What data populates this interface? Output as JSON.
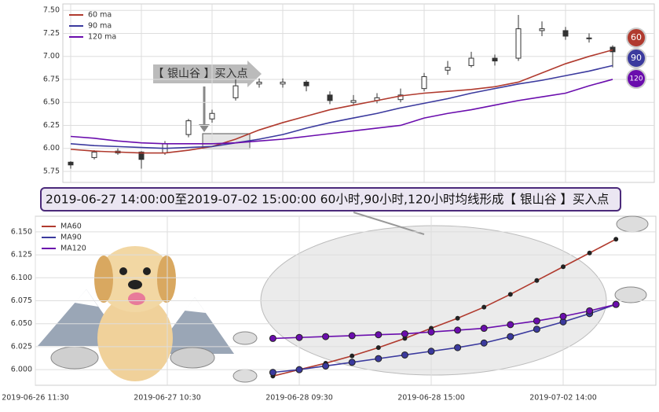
{
  "chart_data": [
    {
      "type": "candlestick",
      "categories": [
        null,
        null,
        null,
        null,
        null,
        null,
        null,
        null,
        null,
        null,
        null,
        null,
        null,
        null,
        null,
        null,
        null,
        null,
        null,
        null,
        null,
        null,
        null,
        null
      ],
      "open": [
        5.85,
        5.9,
        5.95,
        5.96,
        5.95,
        6.15,
        6.32,
        6.55,
        6.7,
        6.7,
        6.72,
        6.58,
        6.5,
        6.52,
        6.53,
        6.65,
        6.85,
        6.9,
        6.98,
        6.98,
        7.28,
        7.28,
        7.2,
        7.1
      ],
      "high": [
        5.86,
        5.98,
        6.0,
        5.97,
        6.08,
        6.32,
        6.42,
        6.75,
        6.76,
        6.76,
        6.74,
        6.62,
        6.58,
        6.6,
        6.65,
        6.82,
        6.95,
        7.05,
        7.02,
        7.45,
        7.38,
        7.32,
        7.25,
        7.12
      ],
      "low": [
        5.78,
        5.88,
        5.93,
        5.78,
        5.93,
        6.12,
        6.28,
        6.52,
        6.66,
        6.66,
        6.62,
        6.48,
        6.47,
        6.49,
        6.5,
        6.62,
        6.8,
        6.88,
        6.9,
        6.95,
        7.22,
        7.18,
        7.15,
        6.88
      ],
      "close": [
        5.82,
        5.96,
        5.97,
        5.88,
        6.05,
        6.3,
        6.38,
        6.68,
        6.72,
        6.72,
        6.68,
        6.52,
        6.52,
        6.55,
        6.58,
        6.78,
        6.88,
        6.98,
        6.95,
        7.3,
        7.3,
        7.22,
        7.2,
        7.05
      ],
      "series": [
        {
          "name": "60 ma",
          "color": "#b03a2e",
          "values": [
            5.99,
            5.97,
            5.96,
            5.95,
            5.95,
            5.98,
            6.02,
            6.1,
            6.2,
            6.28,
            6.35,
            6.42,
            6.47,
            6.52,
            6.57,
            6.6,
            6.62,
            6.64,
            6.67,
            6.72,
            6.82,
            6.92,
            7.0,
            7.07
          ]
        },
        {
          "name": "90 ma",
          "color": "#3b3a9e",
          "values": [
            6.05,
            6.03,
            6.02,
            6.01,
            6.0,
            6.01,
            6.02,
            6.06,
            6.1,
            6.15,
            6.22,
            6.28,
            6.33,
            6.38,
            6.44,
            6.49,
            6.54,
            6.6,
            6.65,
            6.7,
            6.74,
            6.79,
            6.84,
            6.9
          ]
        },
        {
          "name": "120 ma",
          "color": "#6a0dad",
          "values": [
            6.13,
            6.11,
            6.08,
            6.06,
            6.05,
            6.05,
            6.05,
            6.06,
            6.08,
            6.1,
            6.13,
            6.16,
            6.19,
            6.22,
            6.25,
            6.33,
            6.38,
            6.42,
            6.47,
            6.52,
            6.56,
            6.6,
            6.68,
            6.75
          ]
        }
      ],
      "ylim": [
        5.63,
        7.57
      ],
      "yticks": [
        5.75,
        {
          "value": 6,
          "label": "6.00"
        },
        6.25,
        {
          "value": 6.5,
          "label": "6.50"
        },
        6.75,
        {
          "value": 7,
          "label": "7.00"
        },
        7.25,
        {
          "value": 7.5,
          "label": "7.50"
        }
      ],
      "grid": true,
      "legend": "upper left",
      "annotation": "【 银山谷 】买入点",
      "badges": [
        "60",
        "90",
        "120"
      ],
      "banner": "2019-06-27 14:00:00至2019-07-02 15:00:00 60小时,90小时,120小时均线形成【 银山谷 】买入点"
    },
    {
      "type": "line",
      "categories": [
        "2019-06-26 11:30",
        null,
        null,
        null,
        null,
        "2019-06-27 10:30",
        null,
        null,
        null,
        null,
        "2019-06-28 09:30",
        null,
        null,
        null,
        null,
        "2019-06-28 15:00",
        null,
        null,
        null,
        null,
        "2019-07-02 14:00",
        null,
        null,
        null,
        null
      ],
      "series": [
        {
          "name": "MA60",
          "color": "#b03a2e",
          "values": [
            null,
            null,
            null,
            null,
            null,
            null,
            null,
            null,
            null,
            5.993,
            6.0,
            6.007,
            6.015,
            6.024,
            6.034,
            6.045,
            6.056,
            6.068,
            6.082,
            6.097,
            6.112,
            6.127,
            6.142,
            null,
            null
          ]
        },
        {
          "name": "MA90",
          "color": "#3b3a9e",
          "values": [
            null,
            null,
            null,
            null,
            null,
            null,
            null,
            null,
            null,
            5.997,
            6.0,
            6.004,
            6.008,
            6.012,
            6.016,
            6.02,
            6.024,
            6.029,
            6.036,
            6.044,
            6.052,
            6.061,
            6.071,
            null,
            null
          ]
        },
        {
          "name": "MA120",
          "color": "#6a0dad",
          "values": [
            null,
            null,
            null,
            null,
            null,
            null,
            null,
            null,
            null,
            6.034,
            6.035,
            6.036,
            6.037,
            6.038,
            6.039,
            6.041,
            6.043,
            6.045,
            6.049,
            6.053,
            6.058,
            6.064,
            6.071,
            null,
            null
          ]
        }
      ],
      "ylim": [
        5.983,
        6.167
      ],
      "yticks": [
        {
          "value": 6,
          "label": "6.000"
        },
        6.025,
        {
          "value": 6.05,
          "label": "6.050"
        },
        6.075,
        {
          "value": 6.1,
          "label": "6.100"
        },
        6.125,
        {
          "value": 6.15,
          "label": "6.150"
        }
      ],
      "grid": true,
      "legend": "upper left"
    }
  ]
}
